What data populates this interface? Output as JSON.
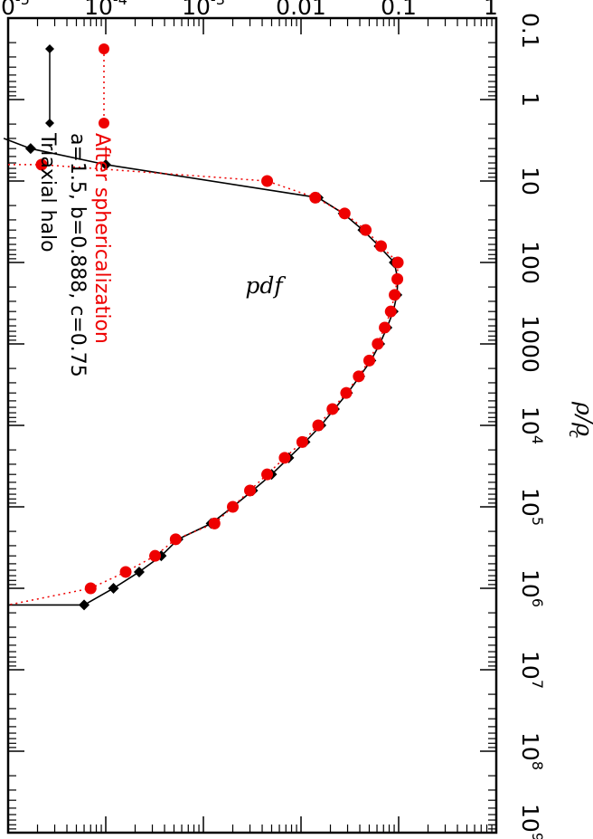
{
  "chart_data": {
    "type": "line",
    "x_axis": {
      "label": "ρ/ρ",
      "label_subscript": "c",
      "scale": "log",
      "range": [
        0.1,
        1000000000
      ],
      "tick_labels": [
        {
          "value": 0.1,
          "text": "0.1"
        },
        {
          "value": 1,
          "text": "1"
        },
        {
          "value": 10,
          "text": "10"
        },
        {
          "value": 100,
          "text": "100"
        },
        {
          "value": 1000,
          "text": "1000"
        },
        {
          "value": 10000,
          "text": "10",
          "sup": "4"
        },
        {
          "value": 100000,
          "text": "10",
          "sup": "5"
        },
        {
          "value": 1000000,
          "text": "10",
          "sup": "6"
        },
        {
          "value": 10000000,
          "text": "10",
          "sup": "7"
        },
        {
          "value": 100000000,
          "text": "10",
          "sup": "8"
        },
        {
          "value": 1000000000,
          "text": "10",
          "sup": "9"
        }
      ]
    },
    "y_axis": {
      "label": "pdf",
      "scale": "log",
      "range": [
        1e-05,
        1
      ],
      "tick_labels": [
        {
          "value": 1e-05,
          "text": "10",
          "sup": "-5"
        },
        {
          "value": 0.0001,
          "text": "10",
          "sup": "-4"
        },
        {
          "value": 0.001,
          "text": "10",
          "sup": "-3"
        },
        {
          "value": 0.01,
          "text": "0.01"
        },
        {
          "value": 0.1,
          "text": "0.1"
        },
        {
          "value": 1,
          "text": "1"
        }
      ]
    },
    "series": [
      {
        "name": "Triaxial halo",
        "color": "#000000",
        "line": "solid",
        "marker": "diamond",
        "x": [
          3.0,
          4.0,
          6.3,
          16,
          25,
          40,
          63,
          100,
          160,
          250,
          400,
          630,
          1000,
          1600,
          2500,
          4000,
          6300,
          10000,
          16000,
          25000,
          40000,
          63000,
          100000,
          160000,
          250000,
          400000,
          630000,
          1000000,
          1600000,
          1600000
        ],
        "y": [
          9e-06,
          1.7e-05,
          0.0001,
          0.015,
          0.027,
          0.043,
          0.063,
          0.09,
          0.098,
          0.096,
          0.088,
          0.076,
          0.064,
          0.052,
          0.04,
          0.03,
          0.022,
          0.016,
          0.011,
          0.0075,
          0.005,
          0.0032,
          0.002,
          0.0012,
          0.00055,
          0.00037,
          0.00022,
          0.00012,
          6e-05,
          1e-05
        ]
      },
      {
        "name": "After sphericalization",
        "color": "#ee0000",
        "line": "dotted",
        "marker": "circle",
        "x": [
          6.3,
          6.3,
          10,
          16,
          25,
          40,
          63,
          100,
          160,
          250,
          400,
          630,
          1000,
          1600,
          2500,
          4000,
          6300,
          10000,
          16000,
          25000,
          40000,
          63000,
          100000,
          160000,
          250000,
          400000,
          630000,
          1000000,
          1600000
        ],
        "y": [
          1e-05,
          2.2e-05,
          0.0045,
          0.014,
          0.028,
          0.046,
          0.066,
          0.098,
          0.097,
          0.091,
          0.083,
          0.072,
          0.061,
          0.05,
          0.039,
          0.029,
          0.021,
          0.015,
          0.0103,
          0.0068,
          0.0045,
          0.003,
          0.002,
          0.0013,
          0.00052,
          0.00032,
          0.00016,
          7e-05,
          1e-05
        ]
      }
    ],
    "legend": {
      "placement": "top-left",
      "entries": [
        {
          "text": "Triaxial halo",
          "color": "#000000"
        },
        {
          "text": "a=1.5, b=0.888, c=0.75",
          "color": "#000000"
        },
        {
          "text": "After sphericalization",
          "color": "#ee0000"
        }
      ]
    },
    "grid": false
  }
}
